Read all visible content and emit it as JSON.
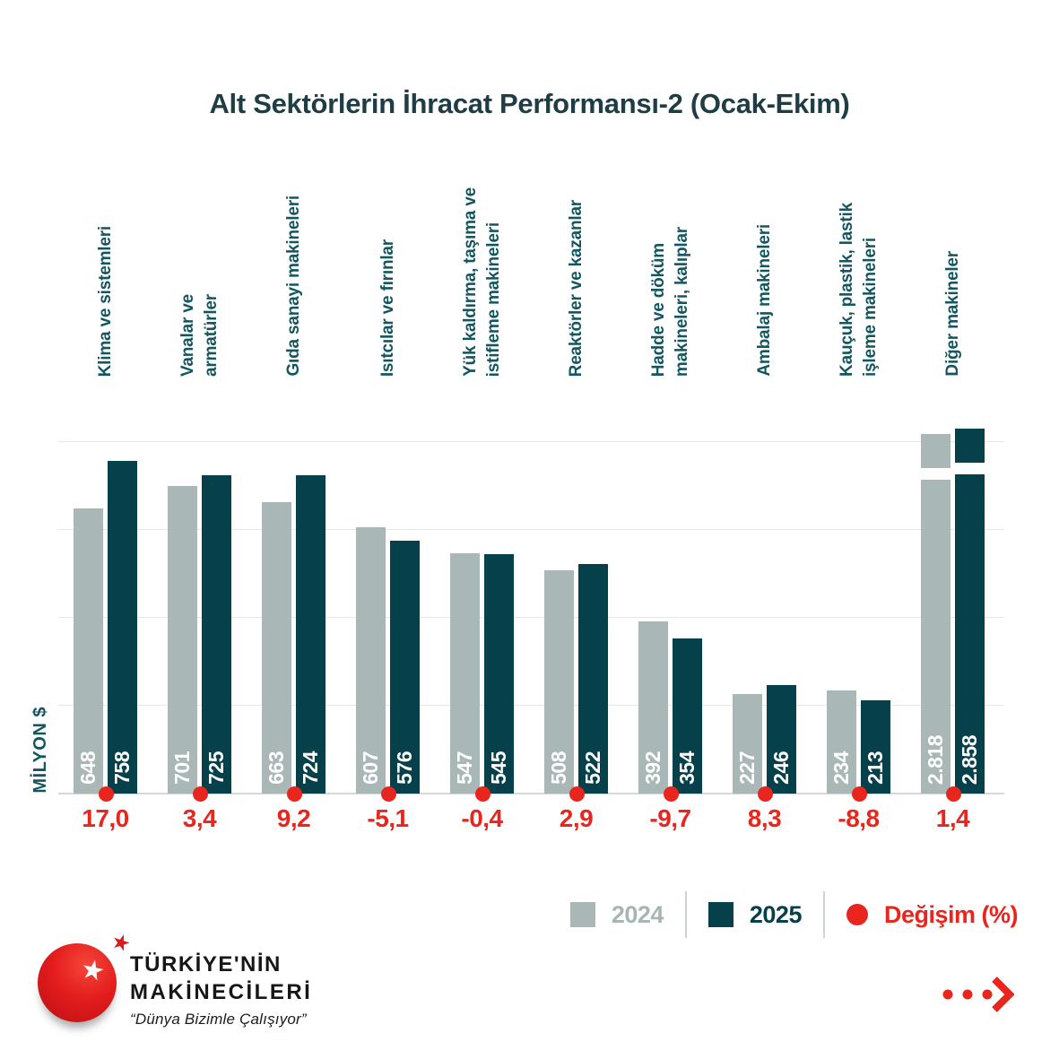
{
  "title": "Alt Sektörlerin İhracat Performansı-2 (Ocak-Ekim)",
  "y_axis_label": "MİLYON $",
  "legend": {
    "year1": "2024",
    "year2": "2025",
    "change": "Değişim (%)"
  },
  "colors": {
    "bar_2024": "#a9b8b7",
    "bar_2025": "#05404b",
    "change_red": "#e8261e",
    "title_teal": "#1e3d45",
    "label_teal": "#14565f"
  },
  "chart_data": {
    "type": "bar",
    "title": "Alt Sektörlerin İhracat Performansı-2 (Ocak-Ekim)",
    "ylabel": "MİLYON $",
    "ylim": [
      0,
      850
    ],
    "gridline_step": 200,
    "grid": true,
    "legend_position": "bottom-right",
    "broken_axis_note": "Diğer makineler bars exceed scale and are drawn with an axis break",
    "categories": [
      [
        "Klima ve sistemleri"
      ],
      [
        "Vanalar ve",
        "armatürler"
      ],
      [
        "Gıda sanayi makineleri"
      ],
      [
        "Isıtcılar ve fırınlar"
      ],
      [
        "Yük kaldırma, taşıma ve",
        "istifleme makineleri"
      ],
      [
        "Reaktörler ve kazanlar"
      ],
      [
        "Hadde ve döküm",
        "makineleri, kalıplar"
      ],
      [
        "Ambalaj makineleri"
      ],
      [
        "Kauçuk, plastik, lastik",
        "işleme makineleri"
      ],
      [
        "Diğer makineler"
      ]
    ],
    "series": [
      {
        "name": "2024",
        "values": [
          648,
          701,
          663,
          607,
          547,
          508,
          392,
          227,
          234,
          2818
        ],
        "labels": [
          "648",
          "701",
          "663",
          "607",
          "547",
          "508",
          "392",
          "227",
          "234",
          "2.818"
        ]
      },
      {
        "name": "2025",
        "values": [
          758,
          725,
          724,
          576,
          545,
          522,
          354,
          246,
          213,
          2858
        ],
        "labels": [
          "758",
          "725",
          "724",
          "576",
          "545",
          "522",
          "354",
          "246",
          "213",
          "2.858"
        ]
      }
    ],
    "change_percent": [
      17.0,
      3.4,
      9.2,
      -5.1,
      -0.4,
      2.9,
      -9.7,
      8.3,
      -8.8,
      1.4
    ],
    "change_labels": [
      "17,0",
      "3,4",
      "9,2",
      "-5,1",
      "-0,4",
      "2,9",
      "-9,7",
      "8,3",
      "-8,8",
      "1,4"
    ]
  },
  "logo": {
    "line1": "TÜRKİYE'NİN",
    "line2": "MAKİNECİLERİ",
    "tagline": "“Dünya Bizimle Çalışıyor”"
  }
}
